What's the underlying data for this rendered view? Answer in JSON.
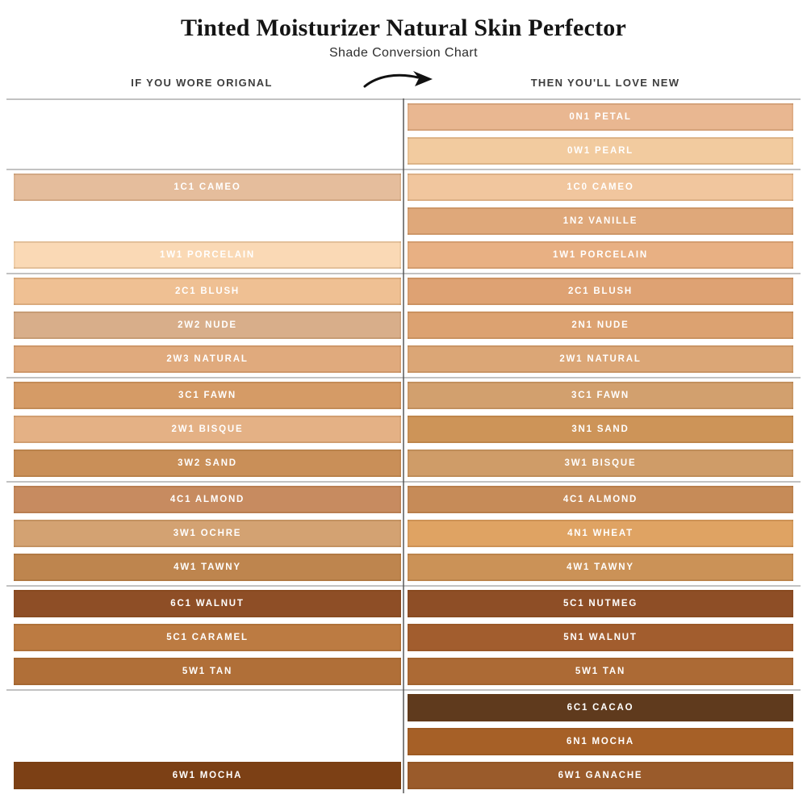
{
  "title": "Tinted Moisturizer Natural Skin Perfector",
  "subtitle": "Shade Conversion Chart",
  "header": {
    "left": "IF YOU WORE ORIGNAL",
    "right": "THEN YOU'LL LOVE NEW"
  },
  "icons": {
    "arrow": "curved-right-arrow"
  },
  "colors": {
    "background": "#FFFFFF",
    "separator_line": "#C2C2C2",
    "column_divider": "#525252",
    "header_text": "#3D3D3D",
    "label_text": "#FFFFFF",
    "title_text": "#141414"
  },
  "chart_data": {
    "type": "table",
    "title": "Tinted Moisturizer Natural Skin Perfector",
    "subtitle": "Shade Conversion Chart",
    "columns": [
      "IF YOU WORE ORIGNAL",
      "THEN YOU'LL LOVE NEW"
    ],
    "groups": [
      {
        "rows": [
          {
            "original": null,
            "new": {
              "label": "0N1 PETAL",
              "color": "#E9B791"
            }
          },
          {
            "original": null,
            "new": {
              "label": "0W1 PEARL",
              "color": "#F2CB9F"
            }
          }
        ]
      },
      {
        "rows": [
          {
            "original": {
              "label": "1C1 CAMEO",
              "color": "#E5BD9C"
            },
            "new": {
              "label": "1C0 CAMEO",
              "color": "#F1C69E"
            }
          },
          {
            "original": null,
            "new": {
              "label": "1N2 VANILLE",
              "color": "#DFA87A"
            }
          },
          {
            "original": {
              "label": "1W1 PORCELAIN",
              "color": "#FAD9B5"
            },
            "new": {
              "label": "1W1 PORCELAIN",
              "color": "#E8B083"
            }
          }
        ]
      },
      {
        "rows": [
          {
            "original": {
              "label": "2C1 BLUSH",
              "color": "#EFC093"
            },
            "new": {
              "label": "2C1 BLUSH",
              "color": "#DEA273"
            }
          },
          {
            "original": {
              "label": "2W2 NUDE",
              "color": "#D8AE8A"
            },
            "new": {
              "label": "2N1 NUDE",
              "color": "#DCA271"
            }
          },
          {
            "original": {
              "label": "2W3 NATURAL",
              "color": "#E0AA7D"
            },
            "new": {
              "label": "2W1 NATURAL",
              "color": "#DBA676"
            }
          }
        ]
      },
      {
        "rows": [
          {
            "original": {
              "label": "3C1 FAWN",
              "color": "#D59B66"
            },
            "new": {
              "label": "3C1 FAWN",
              "color": "#D2A06E"
            }
          },
          {
            "original": {
              "label": "2W1 BISQUE",
              "color": "#E4B185"
            },
            "new": {
              "label": "3N1 SAND",
              "color": "#CD9458"
            }
          },
          {
            "original": {
              "label": "3W2 SAND",
              "color": "#C98F58"
            },
            "new": {
              "label": "3W1 BISQUE",
              "color": "#CF9C68"
            }
          }
        ]
      },
      {
        "rows": [
          {
            "original": {
              "label": "4C1 ALMOND",
              "color": "#C78B60"
            },
            "new": {
              "label": "4C1 ALMOND",
              "color": "#C68B58"
            }
          },
          {
            "original": {
              "label": "3W1 OCHRE",
              "color": "#D3A272"
            },
            "new": {
              "label": "4N1 WHEAT",
              "color": "#DFA363"
            }
          },
          {
            "original": {
              "label": "4W1 TAWNY",
              "color": "#BE854E"
            },
            "new": {
              "label": "4W1 TAWNY",
              "color": "#CB9257"
            }
          }
        ]
      },
      {
        "rows": [
          {
            "original": {
              "label": "6C1 WALNUT",
              "color": "#8E4E26"
            },
            "new": {
              "label": "5C1 NUTMEG",
              "color": "#8E4E26"
            }
          },
          {
            "original": {
              "label": "5C1 CARAMEL",
              "color": "#BC7B42"
            },
            "new": {
              "label": "5N1 WALNUT",
              "color": "#A25D2E"
            }
          },
          {
            "original": {
              "label": "5W1 TAN",
              "color": "#B06F38"
            },
            "new": {
              "label": "5W1 TAN",
              "color": "#AC6A35"
            }
          }
        ]
      },
      {
        "rows": [
          {
            "original": null,
            "new": {
              "label": "6C1 CACAO",
              "color": "#5F3A1D"
            }
          },
          {
            "original": null,
            "new": {
              "label": "6N1 MOCHA",
              "color": "#A66027"
            }
          },
          {
            "original": {
              "label": "6W1 MOCHA",
              "color": "#7C4015"
            },
            "new": {
              "label": "6W1 GANACHE",
              "color": "#9A5B2B"
            }
          }
        ]
      }
    ]
  }
}
